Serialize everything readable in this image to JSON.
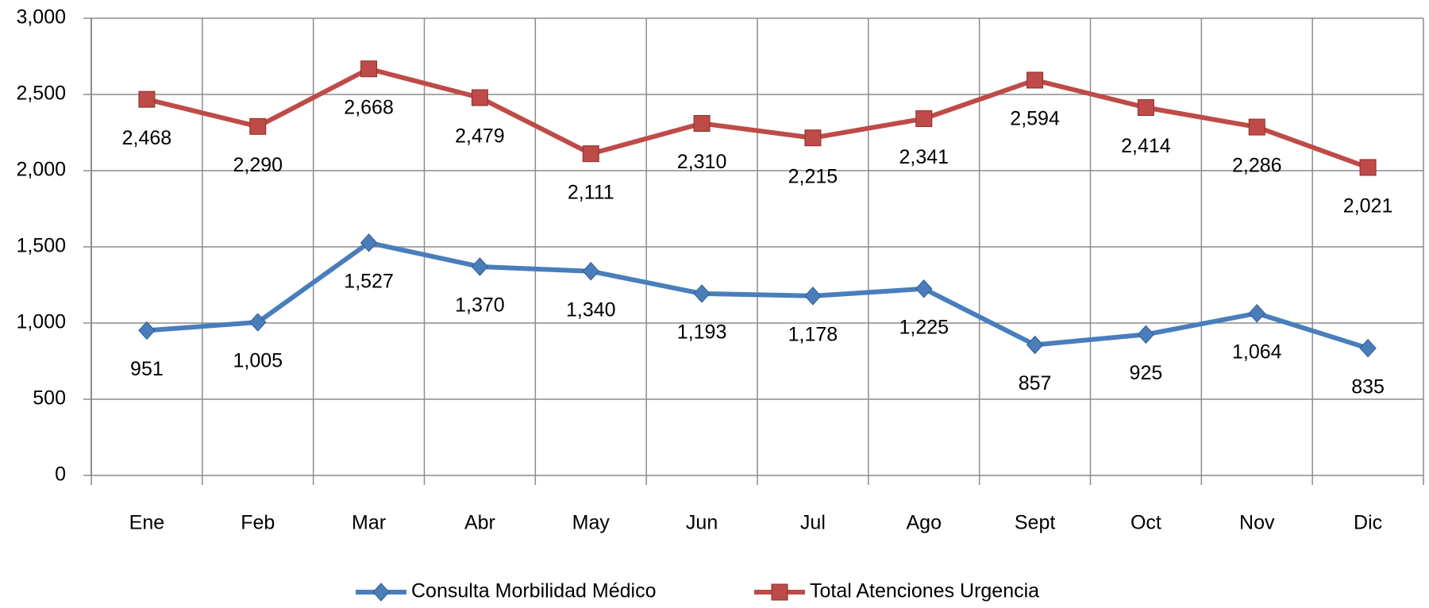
{
  "chart_data": {
    "type": "line",
    "categories": [
      "Ene",
      "Feb",
      "Mar",
      "Abr",
      "May",
      "Jun",
      "Jul",
      "Ago",
      "Sept",
      "Oct",
      "Nov",
      "Dic"
    ],
    "series": [
      {
        "name": "Consulta Morbilidad Médico",
        "color": "#4a7ebb",
        "marker": "diamond",
        "values": [
          951,
          1005,
          1527,
          1370,
          1340,
          1193,
          1178,
          1225,
          857,
          925,
          1064,
          835
        ],
        "value_labels": [
          "951",
          "1,005",
          "1,527",
          "1,370",
          "1,340",
          "1,193",
          "1,178",
          "1,225",
          "857",
          "925",
          "1,064",
          "835"
        ]
      },
      {
        "name": "Total Atenciones Urgencia",
        "color": "#be4b48",
        "marker": "square",
        "values": [
          2468,
          2290,
          2668,
          2479,
          2111,
          2310,
          2215,
          2341,
          2594,
          2414,
          2286,
          2021
        ],
        "value_labels": [
          "2,468",
          "2,290",
          "2,668",
          "2,479",
          "2,111",
          "2,310",
          "2,215",
          "2,341",
          "2,594",
          "2,414",
          "2,286",
          "2,021"
        ]
      }
    ],
    "ylim": [
      0,
      3000
    ],
    "yticks": [
      0,
      500,
      {
        "value": 1000,
        "label": "1,000"
      },
      {
        "value": 1500,
        "label": "1,500"
      },
      {
        "value": 2000,
        "label": "2,000"
      },
      {
        "value": 2500,
        "label": "2,500"
      },
      {
        "value": 3000,
        "label": "3,000"
      }
    ],
    "grid": true,
    "legend": "bottom"
  }
}
